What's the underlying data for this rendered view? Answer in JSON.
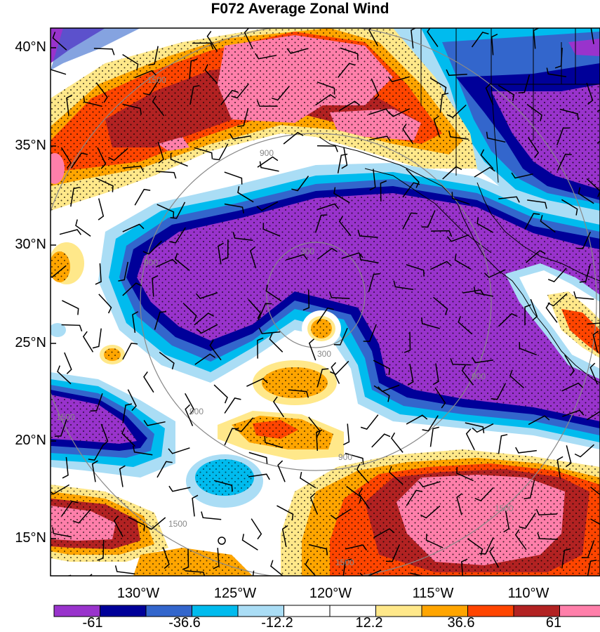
{
  "title": "F072 Average Zonal Wind",
  "lat_labels": [
    "40°N",
    "35°N",
    "30°N",
    "25°N",
    "20°N",
    "15°N"
  ],
  "lon_labels": [
    "130°W",
    "125°W",
    "120°W",
    "115°W",
    "110°W"
  ],
  "colorbar": {
    "labels": [
      "-61",
      "-36.6",
      "-12.2",
      "12.2",
      "36.6",
      "61"
    ],
    "colors": [
      "#9933cc",
      "#000099",
      "#3366cc",
      "#00bbee",
      "#aaddf5",
      "#ffffff",
      "#ffffff",
      "#ffe88a",
      "#ffa500",
      "#ff4500",
      "#b22222",
      "#ff7faa"
    ]
  },
  "contour_labels": [
    "300",
    "300",
    "900",
    "900",
    "900",
    "900",
    "900",
    "1500",
    "1500",
    "1500",
    "1500",
    "1500"
  ],
  "colors": {
    "purple": "#9933cc",
    "navy": "#000099",
    "blue": "#3366cc",
    "cyan": "#00bbee",
    "lightblue": "#aaddf5",
    "yellow": "#ffe88a",
    "orange": "#ffa500",
    "redorange": "#ff4500",
    "darkred": "#b22222",
    "pink": "#ff7faa"
  }
}
